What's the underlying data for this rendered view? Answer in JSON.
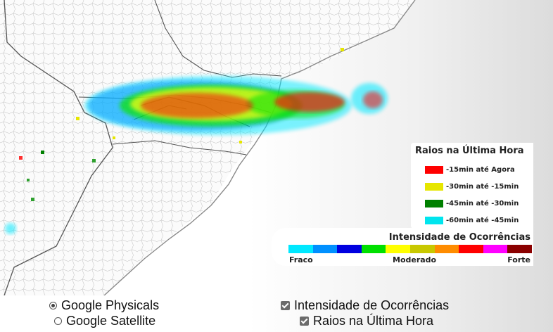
{
  "map": {
    "layer": "Google Physicals"
  },
  "legend_raios": {
    "title": "Raios na Última Hora",
    "items": [
      {
        "label": "-15min até Agora",
        "color": "#ff0000"
      },
      {
        "label": "-30min até -15min",
        "color": "#e6e600"
      },
      {
        "label": "-45min até -30min",
        "color": "#008000"
      },
      {
        "label": "-60min até -45min",
        "color": "#00e5ee"
      }
    ]
  },
  "legend_intensidade": {
    "title": "Intensidade de Ocorrências",
    "colors": [
      "#00e8ff",
      "#0090ff",
      "#0000e0",
      "#00e000",
      "#ffff00",
      "#c8c800",
      "#ff8c00",
      "#ff0000",
      "#ff00ff",
      "#8b0000"
    ],
    "labels": {
      "low": "Fraco",
      "mid": "Moderado",
      "high": "Forte"
    }
  },
  "controls": {
    "radios": [
      {
        "label": "Google Physicals",
        "checked": true
      },
      {
        "label": "Google Satellite",
        "checked": false
      }
    ],
    "checkboxes": [
      {
        "label": "Intensidade de Ocorrências",
        "checked": true
      },
      {
        "label": "Raios na Última Hora",
        "checked": true
      }
    ]
  }
}
